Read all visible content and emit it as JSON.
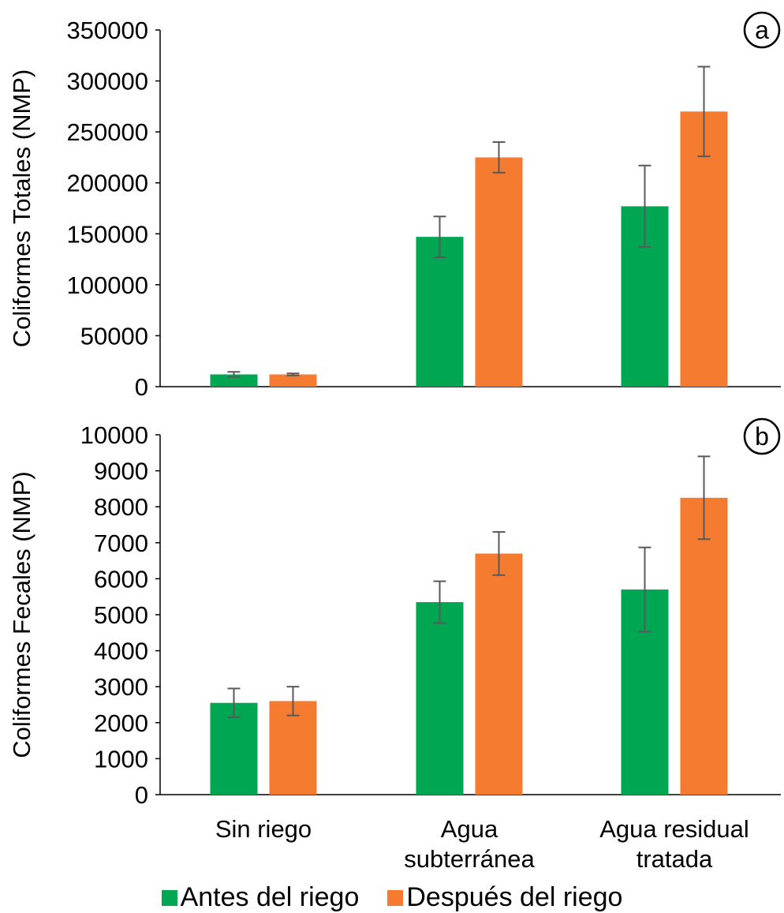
{
  "colors": {
    "antes": "#00A651",
    "despues": "#F47B30",
    "errorbar": "#595959",
    "axis": "#000000"
  },
  "chart_data": [
    {
      "type": "bar",
      "panel_label": "a",
      "ylabel": "Coliformes Totales (NMP)",
      "ylim": [
        0,
        350000
      ],
      "yticks": [
        0,
        50000,
        100000,
        150000,
        200000,
        250000,
        300000,
        350000
      ],
      "categories": [
        "Sin riego",
        "Agua subterránea",
        "Agua residual tratada"
      ],
      "series": [
        {
          "name": "Antes del riego",
          "values": [
            12000,
            147000,
            177000
          ],
          "errors": [
            2500,
            20000,
            40000
          ]
        },
        {
          "name": "Después del riego",
          "values": [
            12000,
            225000,
            270000
          ],
          "errors": [
            1000,
            15000,
            44000
          ]
        }
      ]
    },
    {
      "type": "bar",
      "panel_label": "b",
      "ylabel": "Coliformes Fecales (NMP)",
      "ylim": [
        0,
        10000
      ],
      "yticks": [
        0,
        1000,
        2000,
        3000,
        4000,
        5000,
        6000,
        7000,
        8000,
        9000,
        10000
      ],
      "categories": [
        "Sin riego",
        "Agua subterránea",
        "Agua residual tratada"
      ],
      "category_lines": [
        [
          "Sin riego"
        ],
        [
          "Agua",
          "subterránea"
        ],
        [
          "Agua residual",
          "tratada"
        ]
      ],
      "series": [
        {
          "name": "Antes del riego",
          "values": [
            2550,
            5350,
            5700
          ],
          "errors": [
            400,
            580,
            1170
          ]
        },
        {
          "name": "Después del riego",
          "values": [
            2600,
            6700,
            8250
          ],
          "errors": [
            400,
            600,
            1150
          ]
        }
      ]
    }
  ],
  "legend": {
    "items": [
      {
        "label": "Antes del riego"
      },
      {
        "label": "Después del riego"
      }
    ]
  }
}
